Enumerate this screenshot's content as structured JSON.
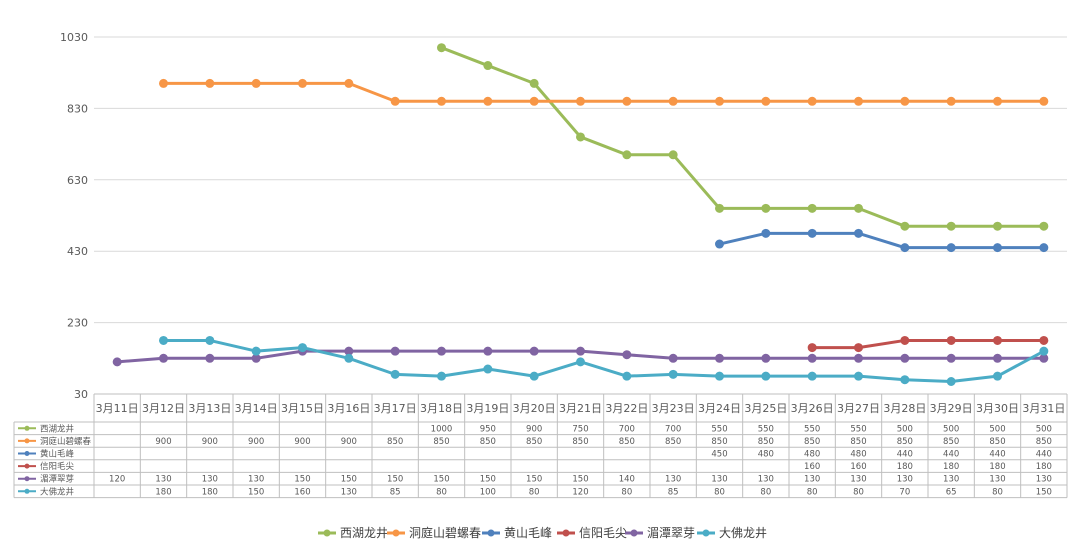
{
  "chart_data": {
    "type": "line",
    "title": "",
    "xlabel": "",
    "ylabel": "",
    "ylim": [
      30,
      1030
    ],
    "yticks": [
      30,
      230,
      430,
      630,
      830,
      1030
    ],
    "grid": true,
    "legend": "bottom",
    "categories": [
      "3月11日",
      "3月12日",
      "3月13日",
      "3月14日",
      "3月15日",
      "3月16日",
      "3月17日",
      "3月18日",
      "3月19日",
      "3月20日",
      "3月21日",
      "3月22日",
      "3月23日",
      "3月24日",
      "3月25日",
      "3月26日",
      "3月27日",
      "3月28日",
      "3月29日",
      "3月30日",
      "3月31日"
    ],
    "series": [
      {
        "name": "西湖龙井",
        "color": "#9bbb59",
        "values": [
          null,
          null,
          null,
          null,
          null,
          null,
          null,
          1000,
          950,
          900,
          750,
          700,
          700,
          550,
          550,
          550,
          550,
          500,
          500,
          500,
          500
        ]
      },
      {
        "name": "洞庭山碧螺春",
        "color": "#f79646",
        "values": [
          null,
          900,
          900,
          900,
          900,
          900,
          850,
          850,
          850,
          850,
          850,
          850,
          850,
          850,
          850,
          850,
          850,
          850,
          850,
          850,
          850
        ]
      },
      {
        "name": "黄山毛峰",
        "color": "#4f81bd",
        "values": [
          null,
          null,
          null,
          null,
          null,
          null,
          null,
          null,
          null,
          null,
          null,
          null,
          null,
          450,
          480,
          480,
          480,
          440,
          440,
          440,
          440
        ]
      },
      {
        "name": "信阳毛尖",
        "color": "#c0504d",
        "values": [
          null,
          null,
          null,
          null,
          null,
          null,
          null,
          null,
          null,
          null,
          null,
          null,
          null,
          null,
          null,
          160,
          160,
          180,
          180,
          180,
          180
        ]
      },
      {
        "name": "湄潭翠芽",
        "color": "#8064a2",
        "values": [
          120,
          130,
          130,
          130,
          150,
          150,
          150,
          150,
          150,
          150,
          150,
          140,
          130,
          130,
          130,
          130,
          130,
          130,
          130,
          130,
          130
        ]
      },
      {
        "name": "大佛龙井",
        "color": "#4bacc6",
        "values": [
          null,
          180,
          180,
          150,
          160,
          130,
          85,
          80,
          100,
          80,
          120,
          80,
          85,
          80,
          80,
          80,
          80,
          70,
          65,
          80,
          150
        ]
      }
    ]
  }
}
